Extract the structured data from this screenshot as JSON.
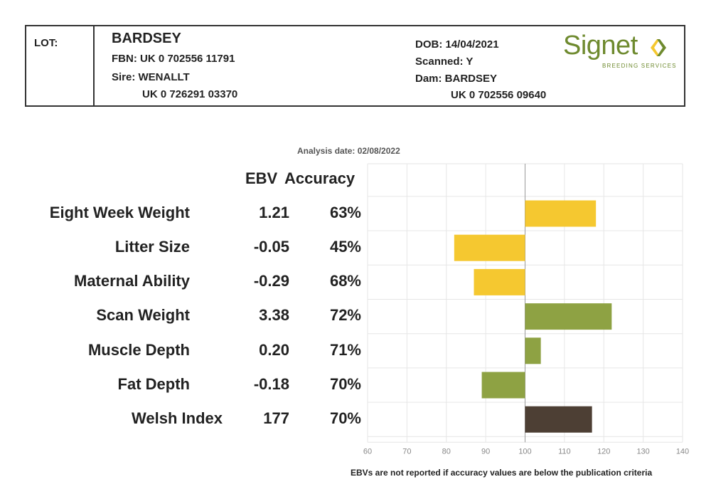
{
  "header": {
    "lot_label": "LOT:",
    "name": "BARDSEY",
    "fbn": "FBN: UK 0 702556 11791",
    "sire": "Sire: WENALLT",
    "sire_id": "UK 0 726291 03370",
    "dob": "DOB: 14/04/2021",
    "scanned": "Scanned: Y",
    "dam": "Dam: BARDSEY",
    "dam_id": "UK 0 702556 09640",
    "logo_word": "Signet",
    "logo_sub": "BREEDING SERVICES"
  },
  "analysis_date": "Analysis date: 02/08/2022",
  "columns": {
    "ebv": "EBV",
    "accuracy": "Accuracy"
  },
  "footnote": "EBVs are not reported if accuracy values are below the publication criteria",
  "colors": {
    "maternal": "#f5c830",
    "production": "#8ea243",
    "index": "#4d3f34",
    "grid": "#e6e6e6",
    "axis": "#999999",
    "tick": "#888888"
  },
  "chart_data": {
    "type": "bar",
    "orientation": "horizontal",
    "baseline": 100,
    "xlim": [
      60,
      140
    ],
    "xticks": [
      60,
      70,
      80,
      90,
      100,
      110,
      120,
      130,
      140
    ],
    "xtick_labels": [
      "60",
      "70",
      "80",
      "90",
      "100",
      "110",
      "120",
      "130",
      "140"
    ],
    "grid": true,
    "categories": [
      "Eight Week Weight",
      "Litter Size",
      "Maternal Ability",
      "Scan Weight",
      "Muscle Depth",
      "Fat Depth",
      "Welsh Index"
    ],
    "ebv": [
      "1.21",
      "-0.05",
      "-0.29",
      "3.38",
      "0.20",
      "-0.18",
      "177"
    ],
    "accuracy": [
      "63%",
      "45%",
      "68%",
      "72%",
      "71%",
      "70%",
      "70%"
    ],
    "values": [
      118,
      82,
      87,
      122,
      104,
      89,
      117
    ],
    "groups": [
      "maternal",
      "maternal",
      "maternal",
      "production",
      "production",
      "production",
      "index"
    ]
  }
}
